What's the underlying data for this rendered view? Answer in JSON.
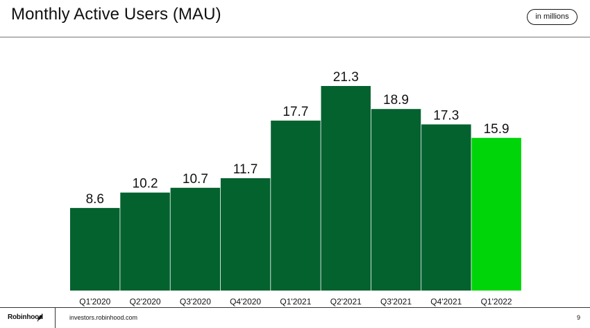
{
  "header": {
    "title": "Monthly Active Users (MAU)",
    "unit_badge": "in millions"
  },
  "footer": {
    "brand": "Robinhood",
    "brand_icon": "feather-icon",
    "site": "investors.robinhood.com",
    "page_number": "9"
  },
  "colors": {
    "bar": "#04622F",
    "highlight_bar": "#00D50A",
    "text": "#111111"
  },
  "chart_data": {
    "type": "bar",
    "categories": [
      "Q1'2020",
      "Q2'2020",
      "Q3'2020",
      "Q4'2020",
      "Q1'2021",
      "Q2'2021",
      "Q3'2021",
      "Q4'2021",
      "Q1'2022"
    ],
    "values": [
      8.6,
      10.2,
      10.7,
      11.7,
      17.7,
      21.3,
      18.9,
      17.3,
      15.9
    ],
    "value_labels": [
      "8.6",
      "10.2",
      "10.7",
      "11.7",
      "17.7",
      "21.3",
      "18.9",
      "17.3",
      "15.9"
    ],
    "highlighted_index": 8,
    "title": "Monthly Active Users (MAU)",
    "unit": "in millions",
    "ylim": [
      0,
      21.3
    ],
    "grid": false,
    "legend": "none"
  }
}
